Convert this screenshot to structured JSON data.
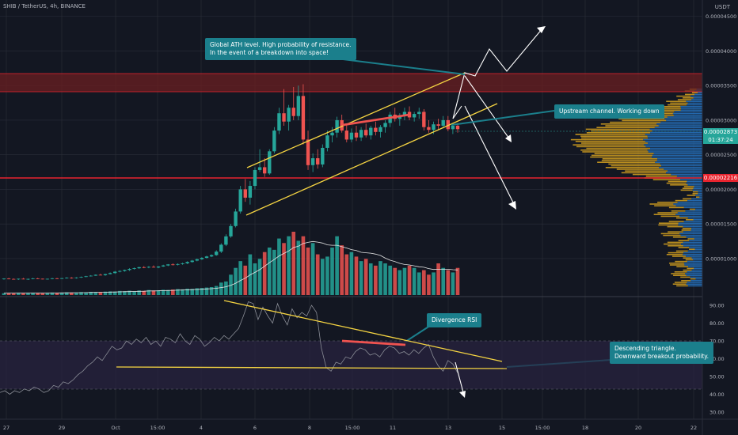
{
  "header": {
    "ticker": "SHIB / TetherUS, 4h, BINANCE",
    "axis_unit": "USDT"
  },
  "colors": {
    "bg": "#131722",
    "up": "#26a69a",
    "down": "#ef5350",
    "grid": "#2a2e39",
    "trend": "#f5d442",
    "resist_zone": "#6b1f22",
    "support_line": "#e8242f",
    "callout": "#1b7f8c",
    "arrow": "#ffffff",
    "rsi_line": "#8a8d96",
    "rsi_band": "#2a2440",
    "vp_orange": "#d8a31f",
    "vp_blue": "#2776c4"
  },
  "callouts": {
    "ath": "Global ATH level. High probability of resistance.\nIn the event of a breakdown into space!",
    "channel": "Upstream channel. Working down",
    "divergence": "Divergence RSI",
    "triangle": "Descending triangle.\nDownward breakout probability."
  },
  "price_tags": {
    "current": "0.00002873",
    "countdown": "01:37:24",
    "support": "0.00002216"
  },
  "chart_data": {
    "type": "candlestick",
    "title": "SHIB / TetherUS, 4h, BINANCE",
    "x_ticks": [
      "27",
      "29",
      "Oct",
      "15:00",
      "4",
      "6",
      "8",
      "15:00",
      "11",
      "13",
      "15",
      "15:00",
      "18",
      "20",
      "22"
    ],
    "y_ticks": [
      "0.00004500",
      "0.00004000",
      "0.00003500",
      "0.00003000",
      "0.00002500",
      "0.00002000",
      "0.00001500",
      "0.00001000"
    ],
    "ylim": [
      4.5e-06,
      4.6e-05
    ],
    "rsi": {
      "y_ticks": [
        "90.00",
        "80.00",
        "70.00",
        "60.00",
        "50.00",
        "40.00",
        "30.00"
      ],
      "ylim": [
        26,
        94
      ],
      "values": [
        41,
        42,
        40,
        42,
        41,
        43,
        42,
        44,
        43,
        41,
        42,
        45,
        44,
        47,
        46,
        48,
        51,
        53,
        56,
        58,
        61,
        59,
        63,
        67,
        65,
        66,
        70,
        68,
        71,
        69,
        72,
        68,
        70,
        67,
        72,
        71,
        69,
        74,
        70,
        68,
        73,
        71,
        67,
        69,
        72,
        70,
        73,
        71,
        74,
        77,
        84,
        92,
        91,
        82,
        89,
        84,
        80,
        91,
        84,
        79,
        88,
        83,
        86,
        84,
        90,
        86,
        66,
        55,
        53,
        58,
        57,
        61,
        60,
        64,
        66,
        65,
        62,
        63,
        61,
        65,
        67,
        66,
        63,
        64,
        62,
        65,
        63,
        66,
        68,
        61,
        56,
        53,
        59,
        57,
        52
      ]
    },
    "candles": [
      [
        7.05e-06,
        7.15e-06,
        6.95e-06,
        7.1e-06
      ],
      [
        7.1e-06,
        7.2e-06,
        7e-06,
        7.05e-06
      ],
      [
        7.05e-06,
        7.12e-06,
        6.98e-06,
        7e-06
      ],
      [
        7e-06,
        7.1e-06,
        6.9e-06,
        7.08e-06
      ],
      [
        7.08e-06,
        7.2e-06,
        7e-06,
        7.02e-06
      ],
      [
        7.02e-06,
        7.1e-06,
        6.9e-06,
        7.06e-06
      ],
      [
        7.06e-06,
        7.2e-06,
        7e-06,
        7.12e-06
      ],
      [
        7.12e-06,
        7.2e-06,
        7.05e-06,
        7.08e-06
      ],
      [
        7.08e-06,
        7.1e-06,
        6.98e-06,
        7.03e-06
      ],
      [
        7.03e-06,
        7.1e-06,
        6.95e-06,
        7.07e-06
      ],
      [
        7.07e-06,
        7.2e-06,
        7e-06,
        7.14e-06
      ],
      [
        7.14e-06,
        7.2e-06,
        7.05e-06,
        7.1e-06
      ],
      [
        7.1e-06,
        7.2e-06,
        7.02e-06,
        7.16e-06
      ],
      [
        7.16e-06,
        7.3e-06,
        7.1e-06,
        7.22e-06
      ],
      [
        7.22e-06,
        7.3e-06,
        7.1e-06,
        7.18e-06
      ],
      [
        7.18e-06,
        7.3e-06,
        7.1e-06,
        7.26e-06
      ],
      [
        7.26e-06,
        7.4e-06,
        7.2e-06,
        7.34e-06
      ],
      [
        7.34e-06,
        7.5e-06,
        7.3e-06,
        7.44e-06
      ],
      [
        7.44e-06,
        7.6e-06,
        7.4e-06,
        7.52e-06
      ],
      [
        7.52e-06,
        7.7e-06,
        7.5e-06,
        7.65e-06
      ],
      [
        7.65e-06,
        7.8e-06,
        7.6e-06,
        7.6e-06
      ],
      [
        7.6e-06,
        7.8e-06,
        7.5e-06,
        7.75e-06
      ],
      [
        7.75e-06,
        8e-06,
        7.7e-06,
        7.9e-06
      ],
      [
        7.9e-06,
        8.2e-06,
        7.8e-06,
        8.1e-06
      ],
      [
        8.1e-06,
        8.3e-06,
        8e-06,
        8.2e-06
      ],
      [
        8.2e-06,
        8.4e-06,
        8.1e-06,
        8.35e-06
      ],
      [
        8.35e-06,
        8.6e-06,
        8.2e-06,
        8.5e-06
      ],
      [
        8.5e-06,
        8.7e-06,
        8.4e-06,
        8.6e-06
      ],
      [
        8.6e-06,
        8.8e-06,
        8.5e-06,
        8.75e-06
      ],
      [
        8.75e-06,
        8.9e-06,
        8.6e-06,
        8.7e-06
      ],
      [
        8.7e-06,
        8.9e-06,
        8.6e-06,
        8.8e-06
      ],
      [
        8.8e-06,
        9e-06,
        8.7e-06,
        8.7e-06
      ],
      [
        8.7e-06,
        8.9e-06,
        8.6e-06,
        8.85e-06
      ],
      [
        8.85e-06,
        9.1e-06,
        8.8e-06,
        9e-06
      ],
      [
        9e-06,
        9.2e-06,
        8.9e-06,
        9.15e-06
      ],
      [
        9.15e-06,
        9.3e-06,
        9e-06,
        9.1e-06
      ],
      [
        9.1e-06,
        9.3e-06,
        9e-06,
        9.2e-06
      ],
      [
        9.2e-06,
        9.4e-06,
        9.1e-06,
        9.3e-06
      ],
      [
        9.3e-06,
        9.6e-06,
        9.2e-06,
        9.5e-06
      ],
      [
        9.5e-06,
        9.8e-06,
        9.4e-06,
        9.7e-06
      ],
      [
        9.7e-06,
        1e-05,
        9.6e-06,
        9.9e-06
      ],
      [
        9.9e-06,
        1.02e-05,
        9.8e-06,
        1.01e-05
      ],
      [
        1.01e-05,
        1.04e-05,
        1e-05,
        1.03e-05
      ],
      [
        1.03e-05,
        1.06e-05,
        1.02e-05,
        1.05e-05
      ],
      [
        1.05e-05,
        1.12e-05,
        1.04e-05,
        1.1e-05
      ],
      [
        1.1e-05,
        1.22e-05,
        1.08e-05,
        1.2e-05
      ],
      [
        1.2e-05,
        1.35e-05,
        1.18e-05,
        1.32e-05
      ],
      [
        1.32e-05,
        1.5e-05,
        1.3e-05,
        1.47e-05
      ],
      [
        1.47e-05,
        1.72e-05,
        1.45e-05,
        1.68e-05
      ],
      [
        1.68e-05,
        2.05e-05,
        1.65e-05,
        2e-05
      ],
      [
        2e-05,
        2.15e-05,
        1.82e-05,
        1.88e-05
      ],
      [
        1.88e-05,
        2.12e-05,
        1.78e-05,
        2.05e-05
      ],
      [
        2.05e-05,
        2.32e-05,
        2e-05,
        2.28e-05
      ],
      [
        2.28e-05,
        2.58e-05,
        2.25e-05,
        2.32e-05
      ],
      [
        2.32e-05,
        2.45e-05,
        2.18e-05,
        2.23e-05
      ],
      [
        2.23e-05,
        2.58e-05,
        2.21e-05,
        2.55e-05
      ],
      [
        2.55e-05,
        2.9e-05,
        2.52e-05,
        2.85e-05
      ],
      [
        2.85e-05,
        3.18e-05,
        2.8e-05,
        3.1e-05
      ],
      [
        3.1e-05,
        3.45e-05,
        2.92e-05,
        2.98e-05
      ],
      [
        2.98e-05,
        3.22e-05,
        2.85e-05,
        3.18e-05
      ],
      [
        3.18e-05,
        3.48e-05,
        3e-05,
        3.06e-05
      ],
      [
        3.06e-05,
        3.5e-05,
        3e-05,
        3.35e-05
      ],
      [
        3.35e-05,
        3.52e-05,
        2.65e-05,
        2.72e-05
      ],
      [
        2.72e-05,
        2.85e-05,
        2.28e-05,
        2.35e-05
      ],
      [
        2.35e-05,
        2.52e-05,
        2.25e-05,
        2.45e-05
      ],
      [
        2.45e-05,
        2.58e-05,
        2.3e-05,
        2.36e-05
      ],
      [
        2.36e-05,
        2.65e-05,
        2.32e-05,
        2.6e-05
      ],
      [
        2.6e-05,
        2.85e-05,
        2.55e-05,
        2.78e-05
      ],
      [
        2.78e-05,
        2.9e-05,
        2.68e-05,
        2.82e-05
      ],
      [
        2.82e-05,
        3.05e-05,
        2.75e-05,
        3e-05
      ],
      [
        3e-05,
        3.08e-05,
        2.82e-05,
        2.85e-05
      ],
      [
        2.85e-05,
        2.95e-05,
        2.68e-05,
        2.72e-05
      ],
      [
        2.72e-05,
        2.88e-05,
        2.68e-05,
        2.82e-05
      ],
      [
        2.82e-05,
        2.92e-05,
        2.7e-05,
        2.75e-05
      ],
      [
        2.75e-05,
        2.9e-05,
        2.7e-05,
        2.86e-05
      ],
      [
        2.86e-05,
        2.95e-05,
        2.75e-05,
        2.78e-05
      ],
      [
        2.78e-05,
        2.92e-05,
        2.72e-05,
        2.89e-05
      ],
      [
        2.89e-05,
        2.98e-05,
        2.78e-05,
        2.83e-05
      ],
      [
        2.83e-05,
        2.93e-05,
        2.75e-05,
        2.9e-05
      ],
      [
        2.9e-05,
        3e-05,
        2.82e-05,
        2.96e-05
      ],
      [
        2.96e-05,
        3.12e-05,
        2.9e-05,
        3.08e-05
      ],
      [
        3.08e-05,
        3.18e-05,
        2.98e-05,
        3.02e-05
      ],
      [
        3.02e-05,
        3.1e-05,
        2.92e-05,
        3.07e-05
      ],
      [
        3.07e-05,
        3.18e-05,
        3e-05,
        3.12e-05
      ],
      [
        3.12e-05,
        3.2e-05,
        3e-05,
        3.04e-05
      ],
      [
        3.04e-05,
        3.12e-05,
        2.98e-05,
        3.09e-05
      ],
      [
        3.09e-05,
        3.18e-05,
        3.02e-05,
        3.12e-05
      ],
      [
        3.12e-05,
        3.16e-05,
        2.85e-05,
        2.9e-05
      ],
      [
        2.9e-05,
        3e-05,
        2.82e-05,
        2.86e-05
      ],
      [
        2.86e-05,
        2.98e-05,
        2.8e-05,
        2.94e-05
      ],
      [
        2.94e-05,
        3.02e-05,
        2.86e-05,
        2.92e-05
      ],
      [
        2.92e-05,
        3.06e-05,
        2.88e-05,
        3e-05
      ],
      [
        3e-05,
        3.06e-05,
        2.84e-05,
        2.87e-05
      ],
      [
        2.87e-05,
        2.96e-05,
        2.8e-05,
        2.92e-05
      ],
      [
        2.92e-05,
        2.96e-05,
        2.82e-05,
        2.87e-05
      ]
    ],
    "volume_relative": [
      8,
      9,
      8,
      10,
      8,
      9,
      10,
      9,
      8,
      9,
      11,
      10,
      10,
      12,
      10,
      11,
      13,
      12,
      14,
      13,
      13,
      15,
      16,
      15,
      18,
      17,
      19,
      17,
      20,
      18,
      22,
      20,
      21,
      23,
      22,
      24,
      26,
      25,
      28,
      27,
      30,
      31,
      33,
      35,
      40,
      55,
      60,
      90,
      120,
      150,
      130,
      180,
      140,
      160,
      190,
      210,
      200,
      250,
      230,
      260,
      280,
      240,
      260,
      210,
      230,
      180,
      160,
      170,
      210,
      260,
      220,
      180,
      190,
      170,
      150,
      160,
      140,
      130,
      150,
      140,
      130,
      120,
      110,
      120,
      130,
      120,
      100,
      110,
      90,
      100,
      140,
      120,
      110,
      100,
      120
    ]
  }
}
